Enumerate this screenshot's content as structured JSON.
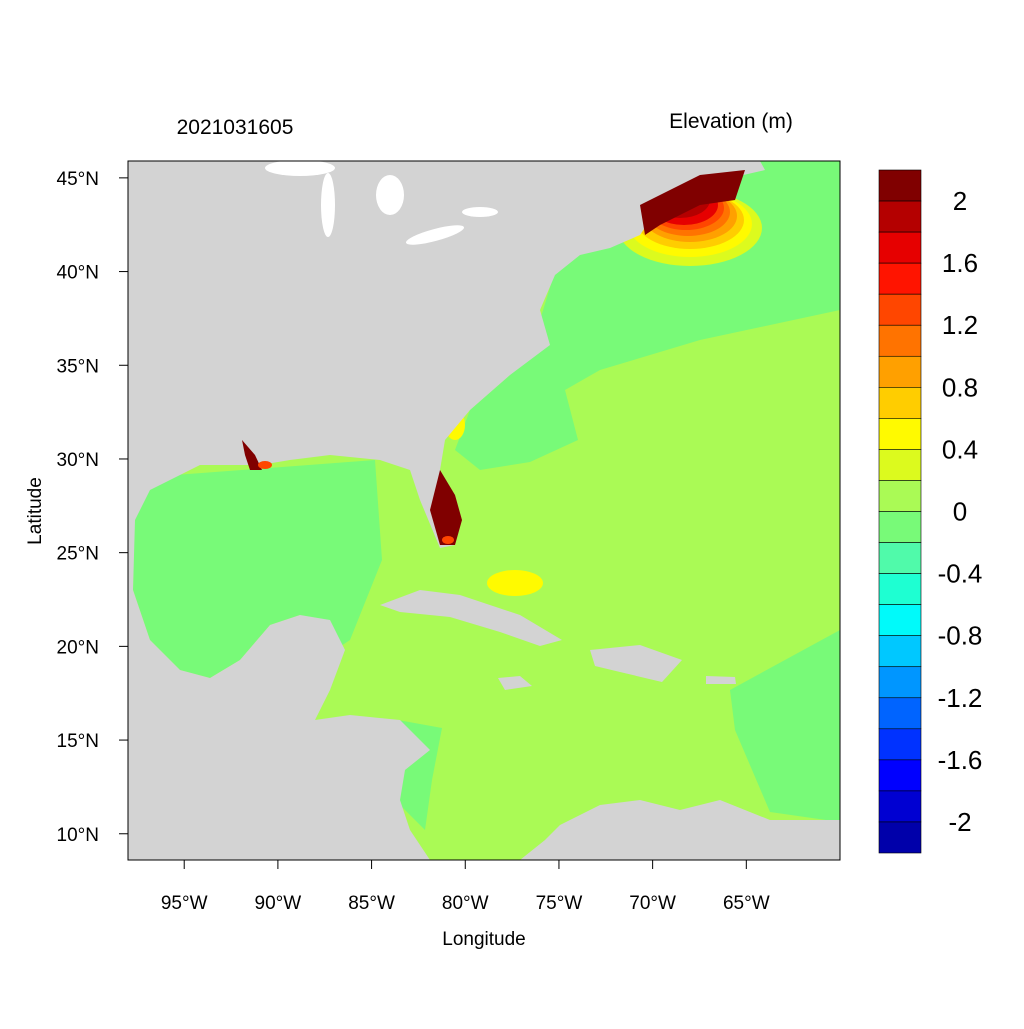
{
  "title_left": "2021031605",
  "title_right": "Elevation (m)",
  "chart_data": {
    "type": "heatmap",
    "map": "storm surge water elevation over the western North Atlantic, Gulf of Mexico and Caribbean",
    "xlabel": "Longitude",
    "ylabel": "Latitude",
    "xlim": [
      -98.0,
      -60.0
    ],
    "ylim": [
      8.6,
      45.9
    ],
    "x_ticks": [
      {
        "value": -95,
        "label": "95°W"
      },
      {
        "value": -90,
        "label": "90°W"
      },
      {
        "value": -85,
        "label": "85°W"
      },
      {
        "value": -80,
        "label": "80°W"
      },
      {
        "value": -75,
        "label": "75°W"
      },
      {
        "value": -70,
        "label": "70°W"
      },
      {
        "value": -65,
        "label": "65°W"
      }
    ],
    "y_ticks": [
      {
        "value": 10,
        "label": "10°N"
      },
      {
        "value": 15,
        "label": "15°N"
      },
      {
        "value": 20,
        "label": "20°N"
      },
      {
        "value": 25,
        "label": "25°N"
      },
      {
        "value": 30,
        "label": "30°N"
      },
      {
        "value": 35,
        "label": "35°N"
      },
      {
        "value": 40,
        "label": "40°N"
      },
      {
        "value": 45,
        "label": "45°N"
      }
    ],
    "land_color": "#d3d3d3",
    "colorbar": {
      "min": -2.2,
      "max": 2.2,
      "step": 0.2,
      "colors_top_to_bottom": [
        "#800000",
        "#b40000",
        "#e60000",
        "#ff1400",
        "#ff4600",
        "#ff7300",
        "#ffa000",
        "#ffcd00",
        "#fffa00",
        "#dcfa1e",
        "#aafa55",
        "#78fa78",
        "#50faaa",
        "#1effd2",
        "#00fafa",
        "#00c8ff",
        "#0096ff",
        "#0064ff",
        "#0032ff",
        "#0000ff",
        "#0000d2",
        "#0000aa"
      ],
      "labels": [
        {
          "value": 2,
          "label": "2"
        },
        {
          "value": 1.6,
          "label": "1.6"
        },
        {
          "value": 1.2,
          "label": "1.2"
        },
        {
          "value": 0.8,
          "label": "0.8"
        },
        {
          "value": 0.4,
          "label": "0.4"
        },
        {
          "value": 0,
          "label": "0"
        },
        {
          "value": -0.4,
          "label": "-0.4"
        },
        {
          "value": -0.8,
          "label": "-0.8"
        },
        {
          "value": -1.2,
          "label": "-1.2"
        },
        {
          "value": -1.6,
          "label": "-1.6"
        },
        {
          "value": -2,
          "label": "-2"
        }
      ]
    }
  }
}
